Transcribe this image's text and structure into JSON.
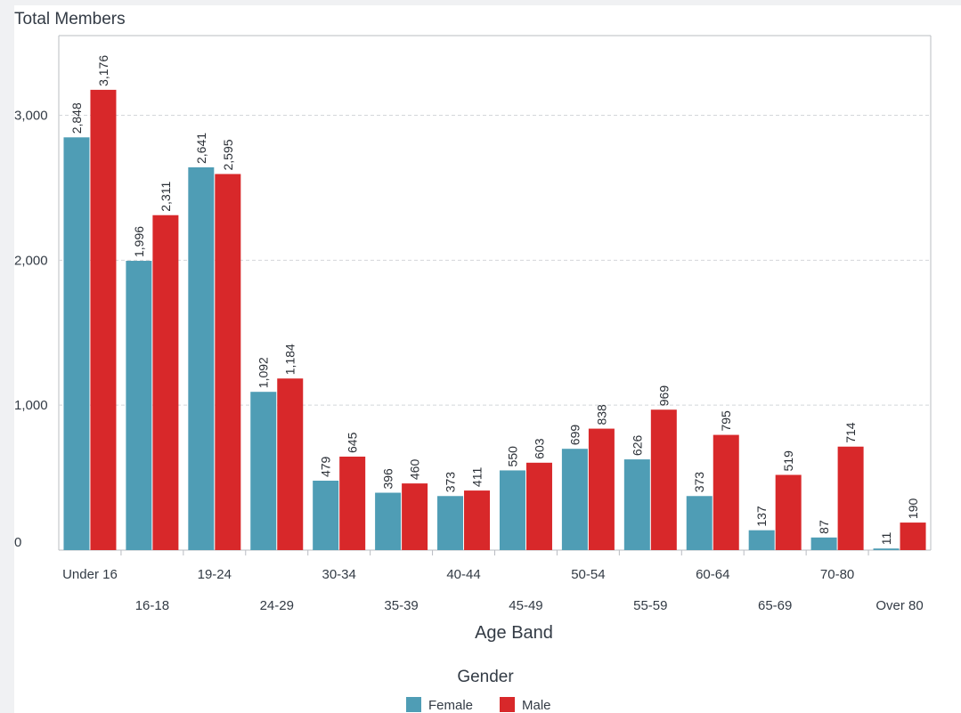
{
  "chart_data": {
    "type": "bar",
    "ylabel": "Total Members",
    "xlabel": "Age Band",
    "categories": [
      "Under 16",
      "16-18",
      "19-24",
      "24-29",
      "30-34",
      "35-39",
      "40-44",
      "45-49",
      "50-54",
      "55-59",
      "60-64",
      "65-69",
      "70-80",
      "Over 80"
    ],
    "series": [
      {
        "name": "Female",
        "color": "#4f9db5",
        "values": [
          2848,
          1996,
          2641,
          1092,
          479,
          396,
          373,
          550,
          699,
          626,
          373,
          137,
          87,
          11
        ],
        "labels": [
          "2,848",
          "1,996",
          "2,641",
          "1,092",
          "479",
          "396",
          "373",
          "550",
          "699",
          "626",
          "373",
          "137",
          "87",
          "11"
        ]
      },
      {
        "name": "Male",
        "color": "#d8282a",
        "values": [
          3176,
          2311,
          2595,
          1184,
          645,
          460,
          411,
          603,
          838,
          969,
          795,
          519,
          714,
          190
        ],
        "labels": [
          "3,176",
          "2,311",
          "2,595",
          "1,184",
          "645",
          "460",
          "411",
          "603",
          "838",
          "969",
          "795",
          "519",
          "714",
          "190"
        ]
      }
    ],
    "ylim": [
      0,
      3550
    ],
    "yticks": [
      0,
      1000,
      2000,
      3000
    ],
    "ytick_labels": [
      "0",
      "1,000",
      "2,000",
      "3,000"
    ],
    "grid": true,
    "legend_title": "Gender",
    "legend_position": "bottom-center"
  }
}
